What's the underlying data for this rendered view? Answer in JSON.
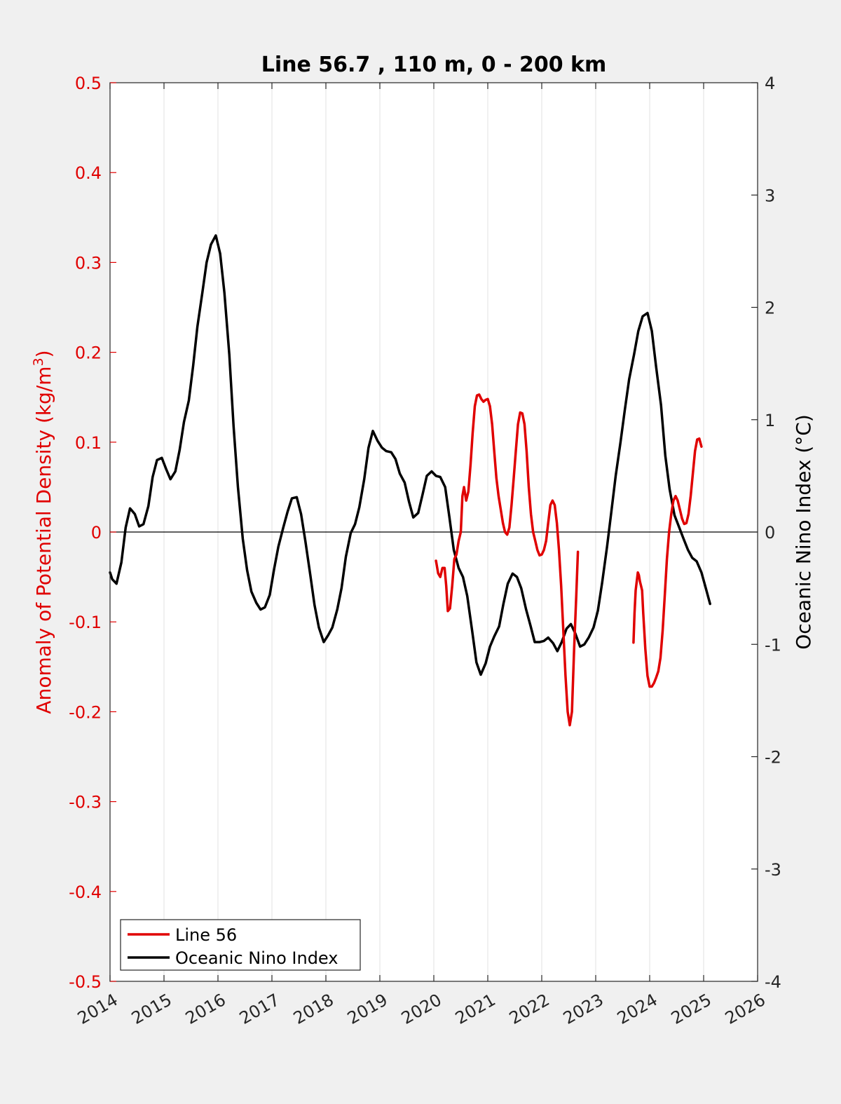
{
  "chart_data": {
    "type": "line",
    "title": "Line 56.7 , 110 m, 0 - 200 km",
    "ylabel_left": {
      "prefix": "Anomaly of Potential Density (kg/m",
      "superscript": "3",
      "suffix": ")"
    },
    "ylabel_right": "Oceanic Nino Index (°C)",
    "xlim": [
      2014,
      2026
    ],
    "ylim_left": [
      -0.5,
      0.5
    ],
    "ylim_right": [
      -4,
      4
    ],
    "x_ticks": [
      2014,
      2015,
      2016,
      2017,
      2018,
      2019,
      2020,
      2021,
      2022,
      2023,
      2024,
      2025,
      2026
    ],
    "x_tick_labels": [
      "2014",
      "2015",
      "2016",
      "2017",
      "2018",
      "2019",
      "2020",
      "2021",
      "2022",
      "2023",
      "2024",
      "2025",
      "2026"
    ],
    "y_left_ticks": [
      0.5,
      0.4,
      0.3,
      0.2,
      0.1,
      0,
      -0.1,
      -0.2,
      -0.3,
      -0.4,
      -0.5
    ],
    "y_left_tick_labels": [
      "0.5",
      "0.4",
      "0.3",
      "0.2",
      "0.1",
      "0",
      "-0.1",
      "-0.2",
      "-0.3",
      "-0.4",
      "-0.5"
    ],
    "y_right_ticks": [
      4,
      3,
      2,
      1,
      0,
      -1,
      -2,
      -3,
      -4
    ],
    "y_right_tick_labels": [
      "4",
      "3",
      "2",
      "1",
      "0",
      "-1",
      "-2",
      "-3",
      "-4"
    ],
    "grid": "vertical lines at x ticks",
    "zero_line": true,
    "legend_position": "bottom-left",
    "colors": {
      "line56": "#e00000",
      "oni": "#000000",
      "left_axis": "#e00000",
      "right_axis": "#000000"
    },
    "series": [
      {
        "name": "Line 56",
        "axis": "left",
        "segments": [
          [
            [
              2020.04,
              -0.032
            ],
            [
              2020.08,
              -0.046
            ],
            [
              2020.12,
              -0.05
            ],
            [
              2020.16,
              -0.04
            ],
            [
              2020.2,
              -0.04
            ],
            [
              2020.23,
              -0.06
            ],
            [
              2020.26,
              -0.088
            ],
            [
              2020.3,
              -0.085
            ],
            [
              2020.34,
              -0.06
            ],
            [
              2020.38,
              -0.03
            ],
            [
              2020.42,
              -0.025
            ],
            [
              2020.46,
              -0.01
            ],
            [
              2020.5,
              0.0
            ],
            [
              2020.53,
              0.04
            ],
            [
              2020.56,
              0.05
            ],
            [
              2020.6,
              0.035
            ],
            [
              2020.64,
              0.045
            ],
            [
              2020.68,
              0.075
            ],
            [
              2020.72,
              0.11
            ],
            [
              2020.76,
              0.14
            ],
            [
              2020.8,
              0.152
            ],
            [
              2020.84,
              0.153
            ],
            [
              2020.88,
              0.148
            ],
            [
              2020.92,
              0.145
            ],
            [
              2020.96,
              0.147
            ],
            [
              2021.0,
              0.148
            ],
            [
              2021.04,
              0.14
            ],
            [
              2021.08,
              0.12
            ],
            [
              2021.12,
              0.09
            ],
            [
              2021.16,
              0.06
            ],
            [
              2021.2,
              0.04
            ],
            [
              2021.24,
              0.025
            ],
            [
              2021.28,
              0.01
            ],
            [
              2021.32,
              0.0
            ],
            [
              2021.36,
              -0.003
            ],
            [
              2021.4,
              0.005
            ],
            [
              2021.44,
              0.03
            ],
            [
              2021.48,
              0.06
            ],
            [
              2021.52,
              0.09
            ],
            [
              2021.56,
              0.12
            ],
            [
              2021.6,
              0.133
            ],
            [
              2021.64,
              0.132
            ],
            [
              2021.68,
              0.12
            ],
            [
              2021.72,
              0.09
            ],
            [
              2021.76,
              0.05
            ],
            [
              2021.8,
              0.02
            ],
            [
              2021.84,
              0.0
            ],
            [
              2021.88,
              -0.01
            ],
            [
              2021.92,
              -0.02
            ],
            [
              2021.96,
              -0.026
            ],
            [
              2022.0,
              -0.025
            ],
            [
              2022.04,
              -0.02
            ],
            [
              2022.08,
              -0.01
            ],
            [
              2022.12,
              0.01
            ],
            [
              2022.16,
              0.03
            ],
            [
              2022.2,
              0.035
            ],
            [
              2022.24,
              0.03
            ],
            [
              2022.28,
              0.01
            ],
            [
              2022.32,
              -0.02
            ],
            [
              2022.36,
              -0.06
            ],
            [
              2022.4,
              -0.11
            ],
            [
              2022.44,
              -0.16
            ],
            [
              2022.48,
              -0.2
            ],
            [
              2022.52,
              -0.215
            ],
            [
              2022.56,
              -0.2
            ],
            [
              2022.6,
              -0.13
            ],
            [
              2022.64,
              -0.07
            ],
            [
              2022.67,
              -0.022
            ]
          ],
          [
            [
              2023.7,
              -0.123
            ],
            [
              2023.72,
              -0.09
            ],
            [
              2023.74,
              -0.065
            ],
            [
              2023.78,
              -0.045
            ],
            [
              2023.8,
              -0.048
            ],
            [
              2023.82,
              -0.055
            ],
            [
              2023.84,
              -0.06
            ],
            [
              2023.86,
              -0.065
            ],
            [
              2023.88,
              -0.09
            ],
            [
              2023.92,
              -0.13
            ],
            [
              2023.96,
              -0.16
            ],
            [
              2024.0,
              -0.172
            ],
            [
              2024.04,
              -0.172
            ],
            [
              2024.08,
              -0.168
            ],
            [
              2024.12,
              -0.162
            ],
            [
              2024.16,
              -0.155
            ],
            [
              2024.2,
              -0.14
            ],
            [
              2024.24,
              -0.11
            ],
            [
              2024.28,
              -0.07
            ],
            [
              2024.32,
              -0.03
            ],
            [
              2024.36,
              0.0
            ],
            [
              2024.4,
              0.02
            ],
            [
              2024.44,
              0.035
            ],
            [
              2024.48,
              0.04
            ],
            [
              2024.52,
              0.035
            ],
            [
              2024.56,
              0.025
            ],
            [
              2024.6,
              0.015
            ],
            [
              2024.64,
              0.009
            ],
            [
              2024.68,
              0.01
            ],
            [
              2024.72,
              0.02
            ],
            [
              2024.76,
              0.04
            ],
            [
              2024.8,
              0.065
            ],
            [
              2024.84,
              0.09
            ],
            [
              2024.88,
              0.103
            ],
            [
              2024.92,
              0.104
            ],
            [
              2024.96,
              0.095
            ]
          ]
        ]
      },
      {
        "name": "Oceanic Nino Index",
        "axis": "right",
        "segments": [
          [
            [
              2014.0,
              -0.36
            ],
            [
              2014.04,
              -0.42
            ],
            [
              2014.12,
              -0.46
            ],
            [
              2014.21,
              -0.27
            ],
            [
              2014.29,
              0.04
            ],
            [
              2014.37,
              0.21
            ],
            [
              2014.46,
              0.16
            ],
            [
              2014.54,
              0.05
            ],
            [
              2014.62,
              0.07
            ],
            [
              2014.71,
              0.23
            ],
            [
              2014.79,
              0.49
            ],
            [
              2014.87,
              0.64
            ],
            [
              2014.96,
              0.66
            ],
            [
              2015.04,
              0.56
            ],
            [
              2015.12,
              0.47
            ],
            [
              2015.21,
              0.54
            ],
            [
              2015.29,
              0.73
            ],
            [
              2015.37,
              0.98
            ],
            [
              2015.46,
              1.17
            ],
            [
              2015.54,
              1.48
            ],
            [
              2015.62,
              1.83
            ],
            [
              2015.71,
              2.13
            ],
            [
              2015.79,
              2.4
            ],
            [
              2015.87,
              2.56
            ],
            [
              2015.96,
              2.64
            ],
            [
              2016.04,
              2.48
            ],
            [
              2016.12,
              2.13
            ],
            [
              2016.21,
              1.58
            ],
            [
              2016.29,
              0.94
            ],
            [
              2016.37,
              0.4
            ],
            [
              2016.46,
              -0.06
            ],
            [
              2016.54,
              -0.34
            ],
            [
              2016.62,
              -0.53
            ],
            [
              2016.71,
              -0.63
            ],
            [
              2016.79,
              -0.69
            ],
            [
              2016.87,
              -0.67
            ],
            [
              2016.96,
              -0.56
            ],
            [
              2017.04,
              -0.33
            ],
            [
              2017.12,
              -0.13
            ],
            [
              2017.21,
              0.04
            ],
            [
              2017.29,
              0.18
            ],
            [
              2017.37,
              0.3
            ],
            [
              2017.46,
              0.31
            ],
            [
              2017.54,
              0.16
            ],
            [
              2017.62,
              -0.08
            ],
            [
              2017.71,
              -0.38
            ],
            [
              2017.79,
              -0.65
            ],
            [
              2017.87,
              -0.85
            ],
            [
              2017.96,
              -0.98
            ],
            [
              2018.04,
              -0.92
            ],
            [
              2018.12,
              -0.85
            ],
            [
              2018.21,
              -0.69
            ],
            [
              2018.29,
              -0.5
            ],
            [
              2018.37,
              -0.22
            ],
            [
              2018.46,
              -0.01
            ],
            [
              2018.54,
              0.07
            ],
            [
              2018.62,
              0.22
            ],
            [
              2018.71,
              0.47
            ],
            [
              2018.79,
              0.75
            ],
            [
              2018.87,
              0.9
            ],
            [
              2018.96,
              0.81
            ],
            [
              2019.04,
              0.75
            ],
            [
              2019.12,
              0.72
            ],
            [
              2019.21,
              0.71
            ],
            [
              2019.29,
              0.65
            ],
            [
              2019.37,
              0.52
            ],
            [
              2019.46,
              0.44
            ],
            [
              2019.54,
              0.27
            ],
            [
              2019.62,
              0.13
            ],
            [
              2019.71,
              0.17
            ],
            [
              2019.79,
              0.33
            ],
            [
              2019.87,
              0.5
            ],
            [
              2019.96,
              0.54
            ],
            [
              2020.04,
              0.5
            ],
            [
              2020.12,
              0.49
            ],
            [
              2020.21,
              0.4
            ],
            [
              2020.29,
              0.13
            ],
            [
              2020.37,
              -0.16
            ],
            [
              2020.46,
              -0.32
            ],
            [
              2020.54,
              -0.4
            ],
            [
              2020.62,
              -0.57
            ],
            [
              2020.71,
              -0.88
            ],
            [
              2020.79,
              -1.16
            ],
            [
              2020.87,
              -1.27
            ],
            [
              2020.96,
              -1.17
            ],
            [
              2021.04,
              -1.02
            ],
            [
              2021.12,
              -0.93
            ],
            [
              2021.21,
              -0.84
            ],
            [
              2021.29,
              -0.64
            ],
            [
              2021.37,
              -0.46
            ],
            [
              2021.46,
              -0.37
            ],
            [
              2021.54,
              -0.4
            ],
            [
              2021.62,
              -0.5
            ],
            [
              2021.71,
              -0.69
            ],
            [
              2021.79,
              -0.83
            ],
            [
              2021.87,
              -0.98
            ],
            [
              2021.96,
              -0.98
            ],
            [
              2022.04,
              -0.97
            ],
            [
              2022.12,
              -0.94
            ],
            [
              2022.21,
              -0.99
            ],
            [
              2022.29,
              -1.06
            ],
            [
              2022.37,
              -0.98
            ],
            [
              2022.46,
              -0.86
            ],
            [
              2022.54,
              -0.82
            ],
            [
              2022.62,
              -0.9
            ],
            [
              2022.71,
              -1.02
            ],
            [
              2022.79,
              -1.0
            ],
            [
              2022.87,
              -0.94
            ],
            [
              2022.96,
              -0.85
            ],
            [
              2023.04,
              -0.7
            ],
            [
              2023.12,
              -0.45
            ],
            [
              2023.21,
              -0.13
            ],
            [
              2023.29,
              0.18
            ],
            [
              2023.37,
              0.5
            ],
            [
              2023.46,
              0.8
            ],
            [
              2023.54,
              1.09
            ],
            [
              2023.62,
              1.36
            ],
            [
              2023.71,
              1.58
            ],
            [
              2023.79,
              1.79
            ],
            [
              2023.87,
              1.92
            ],
            [
              2023.96,
              1.95
            ],
            [
              2024.04,
              1.79
            ],
            [
              2024.12,
              1.47
            ],
            [
              2024.21,
              1.13
            ],
            [
              2024.29,
              0.68
            ],
            [
              2024.37,
              0.38
            ],
            [
              2024.46,
              0.15
            ],
            [
              2024.54,
              0.05
            ],
            [
              2024.62,
              -0.05
            ],
            [
              2024.71,
              -0.16
            ],
            [
              2024.79,
              -0.23
            ],
            [
              2024.87,
              -0.26
            ],
            [
              2024.96,
              -0.36
            ],
            [
              2025.04,
              -0.5
            ],
            [
              2025.12,
              -0.64
            ]
          ]
        ]
      }
    ]
  }
}
